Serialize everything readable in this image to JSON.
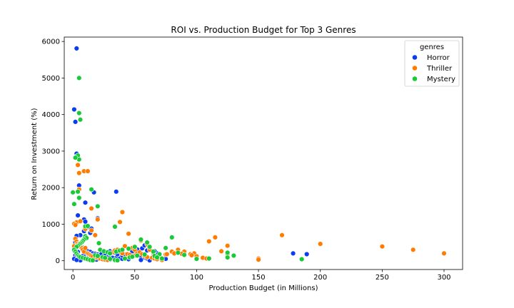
{
  "chart_data": {
    "type": "scatter",
    "title": "ROI vs. Production Budget for Top 3 Genres",
    "xlabel": "Production Budget (in Millions)",
    "ylabel": "Return on Investment (%)",
    "xlim": [
      -7,
      315
    ],
    "ylim": [
      -240,
      6120
    ],
    "xticks": [
      "0",
      "50",
      "100",
      "150",
      "200",
      "250",
      "300"
    ],
    "yticks": [
      "0",
      "1000",
      "2000",
      "3000",
      "4000",
      "5000",
      "6000"
    ],
    "grid": false,
    "legend": {
      "title": "genres",
      "placement": "top-right"
    },
    "series": [
      {
        "name": "Horror",
        "color": "#0a3df0",
        "points": [
          [
            3,
            5810
          ],
          [
            1,
            4140
          ],
          [
            2,
            3800
          ],
          [
            3,
            2930
          ],
          [
            5,
            2060
          ],
          [
            4,
            1240
          ],
          [
            10,
            1590
          ],
          [
            9,
            1130
          ],
          [
            10,
            1070
          ],
          [
            12,
            920
          ],
          [
            15,
            880
          ],
          [
            17,
            1870
          ],
          [
            20,
            1160
          ],
          [
            35,
            1890
          ],
          [
            14,
            760
          ],
          [
            9,
            810
          ],
          [
            6,
            700
          ],
          [
            3,
            680
          ],
          [
            2,
            500
          ],
          [
            5,
            420
          ],
          [
            7,
            380
          ],
          [
            8,
            320
          ],
          [
            10,
            280
          ],
          [
            12,
            260
          ],
          [
            14,
            240
          ],
          [
            16,
            200
          ],
          [
            18,
            190
          ],
          [
            20,
            170
          ],
          [
            22,
            150
          ],
          [
            25,
            130
          ],
          [
            27,
            110
          ],
          [
            30,
            90
          ],
          [
            32,
            80
          ],
          [
            35,
            70
          ],
          [
            38,
            60
          ],
          [
            40,
            50
          ],
          [
            45,
            40
          ],
          [
            50,
            200
          ],
          [
            55,
            130
          ],
          [
            58,
            90
          ],
          [
            60,
            60
          ],
          [
            62,
            30
          ],
          [
            65,
            120
          ],
          [
            68,
            200
          ],
          [
            70,
            100
          ],
          [
            75,
            50
          ],
          [
            2,
            150
          ],
          [
            3,
            100
          ],
          [
            4,
            60
          ],
          [
            5,
            30
          ],
          [
            6,
            10
          ],
          [
            8,
            130
          ],
          [
            10,
            180
          ],
          [
            11,
            210
          ],
          [
            13,
            140
          ],
          [
            15,
            90
          ],
          [
            17,
            60
          ],
          [
            19,
            30
          ],
          [
            23,
            180
          ],
          [
            26,
            200
          ],
          [
            28,
            240
          ],
          [
            30,
            260
          ],
          [
            33,
            220
          ],
          [
            36,
            180
          ],
          [
            40,
            140
          ],
          [
            42,
            170
          ],
          [
            48,
            260
          ],
          [
            52,
            310
          ],
          [
            56,
            340
          ],
          [
            58,
            420
          ],
          [
            60,
            280
          ],
          [
            66,
            260
          ],
          [
            1,
            280
          ],
          [
            1,
            50
          ],
          [
            2,
            350
          ],
          [
            3,
            20
          ],
          [
            4,
            240
          ],
          [
            25,
            60
          ],
          [
            30,
            30
          ],
          [
            34,
            10
          ],
          [
            55,
            20
          ],
          [
            62,
            10
          ],
          [
            178,
            200
          ],
          [
            189,
            180
          ]
        ]
      },
      {
        "name": "Thriller",
        "color": "#ff7c00",
        "points": [
          [
            3,
            2850
          ],
          [
            4,
            2620
          ],
          [
            5,
            2400
          ],
          [
            9,
            2450
          ],
          [
            12,
            2450
          ],
          [
            5,
            1950
          ],
          [
            15,
            1430
          ],
          [
            20,
            1130
          ],
          [
            3,
            1050
          ],
          [
            6,
            1080
          ],
          [
            1,
            1010
          ],
          [
            2,
            980
          ],
          [
            10,
            870
          ],
          [
            15,
            830
          ],
          [
            18,
            700
          ],
          [
            40,
            1330
          ],
          [
            38,
            1060
          ],
          [
            45,
            740
          ],
          [
            42,
            400
          ],
          [
            48,
            350
          ],
          [
            50,
            300
          ],
          [
            55,
            550
          ],
          [
            60,
            450
          ],
          [
            62,
            300
          ],
          [
            65,
            220
          ],
          [
            70,
            100
          ],
          [
            75,
            170
          ],
          [
            80,
            250
          ],
          [
            85,
            300
          ],
          [
            90,
            250
          ],
          [
            95,
            180
          ],
          [
            98,
            200
          ],
          [
            100,
            120
          ],
          [
            105,
            80
          ],
          [
            110,
            530
          ],
          [
            115,
            640
          ],
          [
            120,
            260
          ],
          [
            125,
            410
          ],
          [
            125,
            180
          ],
          [
            150,
            60
          ],
          [
            169,
            700
          ],
          [
            200,
            460
          ],
          [
            250,
            390
          ],
          [
            275,
            300
          ],
          [
            300,
            200
          ],
          [
            1,
            400
          ],
          [
            2,
            600
          ],
          [
            3,
            520
          ],
          [
            4,
            470
          ],
          [
            5,
            450
          ],
          [
            6,
            400
          ],
          [
            7,
            350
          ],
          [
            8,
            300
          ],
          [
            9,
            250
          ],
          [
            10,
            350
          ],
          [
            12,
            200
          ],
          [
            13,
            180
          ],
          [
            14,
            150
          ],
          [
            15,
            130
          ],
          [
            16,
            110
          ],
          [
            18,
            90
          ],
          [
            20,
            80
          ],
          [
            22,
            60
          ],
          [
            24,
            40
          ],
          [
            26,
            30
          ],
          [
            28,
            20
          ],
          [
            30,
            200
          ],
          [
            32,
            230
          ],
          [
            34,
            280
          ],
          [
            36,
            300
          ],
          [
            38,
            250
          ],
          [
            40,
            200
          ],
          [
            44,
            180
          ],
          [
            46,
            160
          ],
          [
            50,
            140
          ],
          [
            52,
            200
          ],
          [
            54,
            230
          ],
          [
            56,
            180
          ],
          [
            58,
            130
          ],
          [
            60,
            100
          ],
          [
            64,
            80
          ],
          [
            66,
            60
          ],
          [
            68,
            40
          ],
          [
            72,
            20
          ],
          [
            76,
            180
          ],
          [
            82,
            200
          ],
          [
            88,
            190
          ],
          [
            96,
            150
          ],
          [
            108,
            60
          ],
          [
            150,
            30
          ]
        ]
      },
      {
        "name": "Mystery",
        "color": "#1ac938",
        "points": [
          [
            5,
            5000
          ],
          [
            5,
            4040
          ],
          [
            6,
            3860
          ],
          [
            4,
            2880
          ],
          [
            5,
            2770
          ],
          [
            2,
            2820
          ],
          [
            0,
            1870
          ],
          [
            4,
            1890
          ],
          [
            5,
            1720
          ],
          [
            15,
            1950
          ],
          [
            20,
            1490
          ],
          [
            1,
            1550
          ],
          [
            10,
            940
          ],
          [
            12,
            950
          ],
          [
            34,
            930
          ],
          [
            10,
            670
          ],
          [
            11,
            620
          ],
          [
            9,
            580
          ],
          [
            8,
            540
          ],
          [
            7,
            500
          ],
          [
            6,
            470
          ],
          [
            5,
            440
          ],
          [
            4,
            410
          ],
          [
            3,
            380
          ],
          [
            21,
            480
          ],
          [
            22,
            300
          ],
          [
            25,
            260
          ],
          [
            28,
            230
          ],
          [
            30,
            200
          ],
          [
            35,
            250
          ],
          [
            38,
            280
          ],
          [
            40,
            300
          ],
          [
            45,
            330
          ],
          [
            50,
            380
          ],
          [
            55,
            580
          ],
          [
            60,
            500
          ],
          [
            62,
            380
          ],
          [
            65,
            250
          ],
          [
            70,
            180
          ],
          [
            75,
            350
          ],
          [
            80,
            640
          ],
          [
            85,
            220
          ],
          [
            90,
            160
          ],
          [
            100,
            50
          ],
          [
            110,
            60
          ],
          [
            125,
            90
          ],
          [
            130,
            140
          ],
          [
            185,
            40
          ],
          [
            1,
            300
          ],
          [
            2,
            250
          ],
          [
            3,
            200
          ],
          [
            4,
            150
          ],
          [
            5,
            120
          ],
          [
            6,
            100
          ],
          [
            8,
            80
          ],
          [
            10,
            60
          ],
          [
            12,
            40
          ],
          [
            14,
            20
          ],
          [
            16,
            10
          ],
          [
            18,
            150
          ],
          [
            20,
            130
          ],
          [
            24,
            100
          ],
          [
            26,
            80
          ],
          [
            30,
            50
          ],
          [
            34,
            20
          ],
          [
            36,
            10
          ],
          [
            42,
            60
          ],
          [
            46,
            90
          ],
          [
            48,
            110
          ],
          [
            52,
            140
          ],
          [
            58,
            170
          ],
          [
            66,
            130
          ],
          [
            68,
            90
          ],
          [
            72,
            60
          ],
          [
            125,
            220
          ]
        ]
      }
    ]
  }
}
